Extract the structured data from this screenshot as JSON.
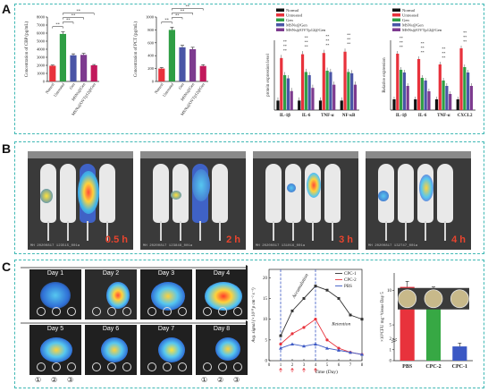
{
  "panel_labels": {
    "a": "A",
    "b": "B",
    "c": "C"
  },
  "chart_data": [
    {
      "id": "cbp",
      "type": "bar",
      "ylabel": "Concentration of CBP (pg/mL)",
      "ylim": [
        0,
        8000
      ],
      "yticks": [
        "0",
        "1000",
        "2000",
        "3000",
        "4000",
        "5000",
        "6000",
        "7000",
        "8000"
      ],
      "categories": [
        "Natural",
        "Untreated",
        "Gen",
        "MSNs@Gen",
        "MSNs@OVTp12@Gen"
      ],
      "values": [
        1950,
        5900,
        3250,
        3300,
        2000
      ],
      "errors": [
        80,
        250,
        180,
        180,
        100
      ],
      "colors": [
        "#e8323c",
        "#2f9e44",
        "#4a55a6",
        "#7d3b8f",
        "#c2185b"
      ],
      "significance": [
        "**",
        "**",
        "**",
        "**"
      ]
    },
    {
      "id": "pct",
      "type": "bar",
      "ylabel": "Concentration of PCT (pg/mL)",
      "ylim": [
        0,
        1000
      ],
      "yticks": [
        "0",
        "200",
        "400",
        "600",
        "800",
        "1000"
      ],
      "categories": [
        "Natural",
        "Untreated",
        "Gen",
        "MSNs@Gen",
        "MSNs@OVTp12@Gen"
      ],
      "values": [
        200,
        800,
        530,
        500,
        240
      ],
      "errors": [
        15,
        40,
        30,
        30,
        20
      ],
      "colors": [
        "#e8323c",
        "#2f9e44",
        "#4a55a6",
        "#7d3b8f",
        "#c2185b"
      ],
      "significance": [
        "**",
        "**",
        "**",
        "**"
      ]
    },
    {
      "id": "protein",
      "type": "bar",
      "ylabel": "protein expression level",
      "categories": [
        "IL-1β",
        "IL-6",
        "TNF-α",
        "NF-κB"
      ],
      "legend": [
        "Normal",
        "Untreated",
        "Gen",
        "MSNs@Gen",
        "MSNs@OVTp12@Gen"
      ],
      "colors": [
        "#111111",
        "#e8323c",
        "#2f9e44",
        "#4a55a6",
        "#7d3b8f"
      ],
      "series": [
        {
          "name": "Normal",
          "values": [
            0.15,
            0.15,
            0.15,
            0.15
          ]
        },
        {
          "name": "Untreated",
          "values": [
            0.82,
            0.88,
            0.9,
            0.92
          ]
        },
        {
          "name": "Gen",
          "values": [
            0.55,
            0.6,
            0.62,
            0.6
          ]
        },
        {
          "name": "MSNs@Gen",
          "values": [
            0.5,
            0.55,
            0.6,
            0.58
          ]
        },
        {
          "name": "MSNs@OVTp12@Gen",
          "values": [
            0.3,
            0.35,
            0.4,
            0.4
          ]
        }
      ],
      "ylim": [
        0,
        1.1
      ]
    },
    {
      "id": "relative",
      "type": "bar",
      "ylabel": "Relative expression",
      "categories": [
        "IL-1β",
        "IL-6",
        "TNF-α",
        "CXCL2"
      ],
      "legend": [
        "Normal",
        "Untreated",
        "Gen",
        "MSNs@Gen",
        "MSNs@OVTp12@Gen"
      ],
      "colors": [
        "#111111",
        "#e8323c",
        "#2f9e44",
        "#4a55a6",
        "#7d3b8f"
      ],
      "series": [
        {
          "name": "Normal",
          "values": [
            0.2,
            0.2,
            0.2,
            0.2
          ]
        },
        {
          "name": "Untreated",
          "values": [
            1.05,
            0.95,
            0.85,
            1.15
          ]
        },
        {
          "name": "Gen",
          "values": [
            0.75,
            0.6,
            0.55,
            0.8
          ]
        },
        {
          "name": "MSNs@Gen",
          "values": [
            0.7,
            0.55,
            0.45,
            0.7
          ]
        },
        {
          "name": "MSNs@OVTp12@Gen",
          "values": [
            0.45,
            0.35,
            0.3,
            0.45
          ]
        }
      ],
      "ylim": [
        0,
        1.3
      ]
    },
    {
      "id": "avg_signal",
      "type": "line",
      "ylabel": "Avg. signal (×10¹⁰ p cm⁻² s⁻¹)",
      "xlabel": "Time (Day)",
      "xlim": [
        0,
        8
      ],
      "ylim": [
        0,
        22
      ],
      "xticks": [
        "0",
        "1",
        "2",
        "3",
        "4",
        "5",
        "6",
        "7",
        "8"
      ],
      "yticks": [
        "0",
        "5",
        "10",
        "15",
        "20"
      ],
      "annotations": [
        "Accumulation",
        "Retention"
      ],
      "series": [
        {
          "name": "CPC-1",
          "color": "#333333",
          "x": [
            1,
            2,
            3,
            4,
            5,
            6,
            7,
            8
          ],
          "values": [
            6,
            12,
            15,
            18,
            17,
            15,
            11,
            10
          ]
        },
        {
          "name": "CPC-2",
          "color": "#e8323c",
          "x": [
            1,
            2,
            3,
            4,
            5,
            6,
            7,
            8
          ],
          "values": [
            4,
            6.5,
            8,
            10,
            5,
            3,
            2,
            1.5
          ]
        },
        {
          "name": "PBS",
          "color": "#3b58c4",
          "x": [
            1,
            2,
            3,
            4,
            5,
            6,
            7,
            8
          ],
          "values": [
            3,
            4,
            3.5,
            4,
            3,
            2.5,
            2,
            1.5
          ]
        }
      ]
    },
    {
      "id": "cfu",
      "type": "bar",
      "ylabel": "×10⁵CFU mg⁻¹tissue Day 5",
      "categories": [
        "PBS",
        "CPC-2",
        "CPC-1"
      ],
      "values": [
        10.5,
        9.8,
        1.3
      ],
      "errors": [
        0.8,
        0.7,
        0.3
      ],
      "colors": [
        "#e8323c",
        "#37a844",
        "#3b58c4"
      ],
      "ylim": [
        0,
        12
      ],
      "yticks": [
        "0",
        "1",
        "2",
        "5",
        "10"
      ]
    }
  ],
  "panel_b": {
    "time_labels": [
      "0.5 h",
      "2 h",
      "3 h",
      "4 h"
    ]
  },
  "panel_c": {
    "days": [
      "Day 1",
      "Day 2",
      "Day 3",
      "Day 4",
      "Day 5",
      "Day 6",
      "Day 7",
      "Day 8"
    ],
    "circle_numbers": [
      "①",
      "②",
      "③",
      "①",
      "②",
      "③"
    ]
  }
}
